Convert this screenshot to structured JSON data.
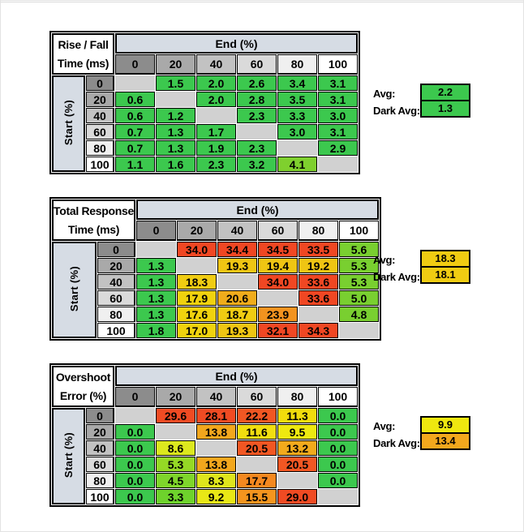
{
  "page": {
    "background": "#ffffff",
    "top_line_color": "#d9d9d9"
  },
  "palette": {
    "header_blue": "#D6DCE4",
    "blank_cell": "#D1D1D1",
    "gray_ramp": [
      "#8C8C8C",
      "#A9A9A9",
      "#C2C2C2",
      "#DADADA",
      "#F0F0F0",
      "#FFFFFF"
    ],
    "green": "#3CC84E",
    "yellow_green": "#79CF30",
    "yellow": "#EEE910",
    "gold": "#F0CC12",
    "amber": "#F2A71D",
    "orange": "#F4951E",
    "red": "#F04723"
  },
  "tables": [
    {
      "title_line1": "Rise / Fall",
      "title_line2": "Time (ms)",
      "col_axis": "End (%)",
      "row_axis": "Start (%)",
      "col_labels": [
        "0",
        "20",
        "40",
        "60",
        "80",
        "100"
      ],
      "rows": [
        {
          "label": "0",
          "cells": [
            null,
            {
              "v": "1.5",
              "c": "#3CC84E"
            },
            {
              "v": "2.0",
              "c": "#3CC84E"
            },
            {
              "v": "2.6",
              "c": "#3CC84E"
            },
            {
              "v": "3.4",
              "c": "#3CC84E"
            },
            {
              "v": "3.1",
              "c": "#3CC84E"
            }
          ]
        },
        {
          "label": "20",
          "cells": [
            {
              "v": "0.6",
              "c": "#3CC84E"
            },
            null,
            {
              "v": "2.0",
              "c": "#3CC84E"
            },
            {
              "v": "2.8",
              "c": "#3CC84E"
            },
            {
              "v": "3.5",
              "c": "#3CC84E"
            },
            {
              "v": "3.1",
              "c": "#3CC84E"
            }
          ]
        },
        {
          "label": "40",
          "cells": [
            {
              "v": "0.6",
              "c": "#3CC84E"
            },
            {
              "v": "1.2",
              "c": "#3CC84E"
            },
            null,
            {
              "v": "2.3",
              "c": "#3CC84E"
            },
            {
              "v": "3.3",
              "c": "#3CC84E"
            },
            {
              "v": "3.0",
              "c": "#3CC84E"
            }
          ]
        },
        {
          "label": "60",
          "cells": [
            {
              "v": "0.7",
              "c": "#3CC84E"
            },
            {
              "v": "1.3",
              "c": "#3CC84E"
            },
            {
              "v": "1.7",
              "c": "#3CC84E"
            },
            null,
            {
              "v": "3.0",
              "c": "#3CC84E"
            },
            {
              "v": "3.1",
              "c": "#3CC84E"
            }
          ]
        },
        {
          "label": "80",
          "cells": [
            {
              "v": "0.7",
              "c": "#3CC84E"
            },
            {
              "v": "1.3",
              "c": "#3CC84E"
            },
            {
              "v": "1.9",
              "c": "#3CC84E"
            },
            {
              "v": "2.3",
              "c": "#3CC84E"
            },
            null,
            {
              "v": "2.9",
              "c": "#3CC84E"
            }
          ]
        },
        {
          "label": "100",
          "cells": [
            {
              "v": "1.1",
              "c": "#3CC84E"
            },
            {
              "v": "1.6",
              "c": "#3CC84E"
            },
            {
              "v": "2.3",
              "c": "#3CC84E"
            },
            {
              "v": "3.2",
              "c": "#3CC84E"
            },
            {
              "v": "4.1",
              "c": "#7FD02E"
            },
            null
          ]
        }
      ],
      "avg_label": "Avg:",
      "dark_avg_label": "Dark Avg:",
      "avg": {
        "value": "2.2",
        "color": "#3CC84E"
      },
      "dark_avg": {
        "value": "1.3",
        "color": "#3CC84E"
      }
    },
    {
      "title_line1": "Total Response",
      "title_line2": "Time (ms)",
      "col_axis": "End (%)",
      "row_axis": "Start (%)",
      "col_labels": [
        "0",
        "20",
        "40",
        "60",
        "80",
        "100"
      ],
      "rows": [
        {
          "label": "0",
          "cells": [
            null,
            {
              "v": "34.0",
              "c": "#F04723"
            },
            {
              "v": "34.4",
              "c": "#F04723"
            },
            {
              "v": "34.5",
              "c": "#F04723"
            },
            {
              "v": "33.5",
              "c": "#F04723"
            },
            {
              "v": "5.6",
              "c": "#79CF30"
            }
          ]
        },
        {
          "label": "20",
          "cells": [
            {
              "v": "1.3",
              "c": "#3CC84E"
            },
            null,
            {
              "v": "19.3",
              "c": "#EFC513"
            },
            {
              "v": "19.4",
              "c": "#EFC513"
            },
            {
              "v": "19.2",
              "c": "#EFC513"
            },
            {
              "v": "5.3",
              "c": "#79CF30"
            }
          ]
        },
        {
          "label": "40",
          "cells": [
            {
              "v": "1.3",
              "c": "#3CC84E"
            },
            {
              "v": "18.3",
              "c": "#F0CC12"
            },
            null,
            {
              "v": "34.0",
              "c": "#F04723"
            },
            {
              "v": "33.6",
              "c": "#F04723"
            },
            {
              "v": "5.3",
              "c": "#79CF30"
            }
          ]
        },
        {
          "label": "60",
          "cells": [
            {
              "v": "1.3",
              "c": "#3CC84E"
            },
            {
              "v": "17.9",
              "c": "#F0D20E"
            },
            {
              "v": "20.6",
              "c": "#F0AC1B"
            },
            null,
            {
              "v": "33.6",
              "c": "#F04723"
            },
            {
              "v": "5.0",
              "c": "#79CF30"
            }
          ]
        },
        {
          "label": "80",
          "cells": [
            {
              "v": "1.3",
              "c": "#3CC84E"
            },
            {
              "v": "17.6",
              "c": "#F0D20E"
            },
            {
              "v": "18.7",
              "c": "#F0CC12"
            },
            {
              "v": "23.9",
              "c": "#F2931F"
            },
            null,
            {
              "v": "4.8",
              "c": "#79CF30"
            }
          ]
        },
        {
          "label": "100",
          "cells": [
            {
              "v": "1.8",
              "c": "#3CC84E"
            },
            {
              "v": "17.0",
              "c": "#F0D20E"
            },
            {
              "v": "19.3",
              "c": "#EFC513"
            },
            {
              "v": "32.1",
              "c": "#F04723"
            },
            {
              "v": "34.3",
              "c": "#F04723"
            },
            null
          ]
        }
      ],
      "avg_label": "Avg:",
      "dark_avg_label": "Dark Avg:",
      "avg": {
        "value": "18.3",
        "color": "#F0CC12"
      },
      "dark_avg": {
        "value": "18.1",
        "color": "#F0CC12"
      }
    },
    {
      "title_line1": "Overshoot",
      "title_line2": "Error (%)",
      "col_axis": "End (%)",
      "row_axis": "Start (%)",
      "col_labels": [
        "0",
        "20",
        "40",
        "60",
        "80",
        "100"
      ],
      "rows": [
        {
          "label": "0",
          "cells": [
            null,
            {
              "v": "29.6",
              "c": "#F04B23"
            },
            {
              "v": "28.1",
              "c": "#F04B23"
            },
            {
              "v": "22.2",
              "c": "#F15723"
            },
            {
              "v": "11.3",
              "c": "#F1DC0C"
            },
            {
              "v": "0.0",
              "c": "#3CC84E"
            }
          ]
        },
        {
          "label": "20",
          "cells": [
            {
              "v": "0.0",
              "c": "#3CC84E"
            },
            null,
            {
              "v": "13.8",
              "c": "#F2A71D"
            },
            {
              "v": "11.6",
              "c": "#F1DE10"
            },
            {
              "v": "9.5",
              "c": "#EEE910"
            },
            {
              "v": "0.0",
              "c": "#3CC84E"
            }
          ]
        },
        {
          "label": "40",
          "cells": [
            {
              "v": "0.0",
              "c": "#3CC84E"
            },
            {
              "v": "8.6",
              "c": "#DCE81E"
            },
            null,
            {
              "v": "20.5",
              "c": "#F15723"
            },
            {
              "v": "13.2",
              "c": "#F2AA1C"
            },
            {
              "v": "0.0",
              "c": "#3CC84E"
            }
          ]
        },
        {
          "label": "60",
          "cells": [
            {
              "v": "0.0",
              "c": "#3CC84E"
            },
            {
              "v": "5.3",
              "c": "#95D925"
            },
            {
              "v": "13.8",
              "c": "#F2A71D"
            },
            null,
            {
              "v": "20.5",
              "c": "#F15723"
            },
            {
              "v": "0.0",
              "c": "#3CC84E"
            }
          ]
        },
        {
          "label": "80",
          "cells": [
            {
              "v": "0.0",
              "c": "#3CC84E"
            },
            {
              "v": "4.5",
              "c": "#7FD52B"
            },
            {
              "v": "8.3",
              "c": "#DFE51D"
            },
            {
              "v": "17.7",
              "c": "#F4881F"
            },
            null,
            {
              "v": "0.0",
              "c": "#3CC84E"
            }
          ]
        },
        {
          "label": "100",
          "cells": [
            {
              "v": "0.0",
              "c": "#3CC84E"
            },
            {
              "v": "3.3",
              "c": "#6ED22C"
            },
            {
              "v": "9.2",
              "c": "#E9E816"
            },
            {
              "v": "15.5",
              "c": "#F4951E"
            },
            {
              "v": "29.0",
              "c": "#F04B23"
            },
            null
          ]
        }
      ],
      "avg_label": "Avg:",
      "dark_avg_label": "Dark Avg:",
      "avg": {
        "value": "9.9",
        "color": "#EFE70F"
      },
      "dark_avg": {
        "value": "13.4",
        "color": "#F2A81D"
      }
    }
  ]
}
